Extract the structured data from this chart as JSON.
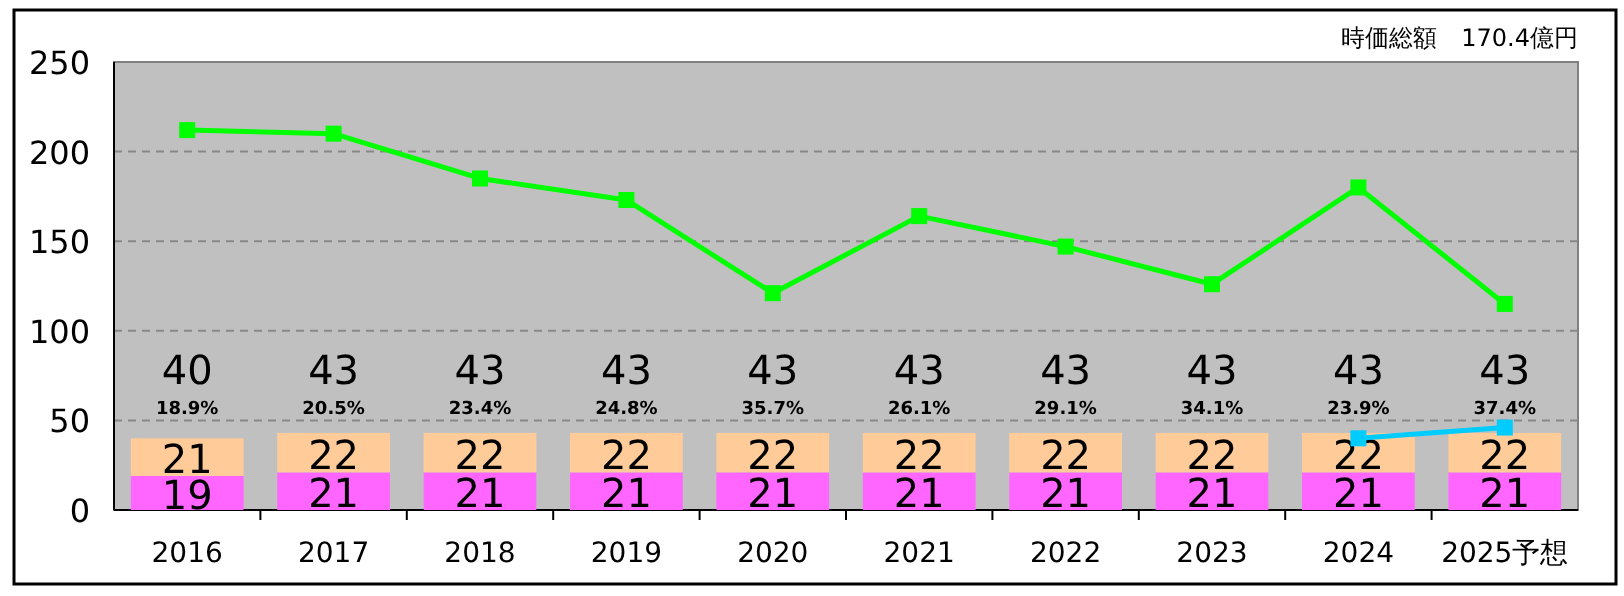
{
  "chart_data": {
    "type": "bar",
    "subtitle": "時価総額　170.4億円",
    "categories": [
      "2016",
      "2017",
      "2018",
      "2019",
      "2020",
      "2021",
      "2022",
      "2023",
      "2024",
      "2025予想"
    ],
    "series": [
      {
        "type": "bar",
        "color": "#ff66ff",
        "values": [
          19,
          21,
          21,
          21,
          21,
          21,
          21,
          21,
          21,
          21
        ],
        "value_labels": [
          "19",
          "21",
          "21",
          "21",
          "21",
          "21",
          "21",
          "21",
          "21",
          "21"
        ]
      },
      {
        "type": "bar",
        "color": "#ffcc99",
        "values": [
          21,
          22,
          22,
          22,
          22,
          22,
          22,
          22,
          22,
          22
        ],
        "value_labels": [
          "21",
          "22",
          "22",
          "22",
          "22",
          "22",
          "22",
          "22",
          "22",
          "22"
        ]
      },
      {
        "type": "line",
        "color": "#00ff00",
        "values": [
          212,
          210,
          185,
          173,
          121,
          164,
          147,
          126,
          180,
          115
        ]
      },
      {
        "type": "line",
        "color": "#00ccff",
        "values": [
          null,
          null,
          null,
          null,
          null,
          null,
          null,
          null,
          40,
          46
        ]
      }
    ],
    "stacked": true,
    "totals": [
      "40",
      "43",
      "43",
      "43",
      "43",
      "43",
      "43",
      "43",
      "43",
      "43"
    ],
    "annotations": [
      "18.9%",
      "20.5%",
      "23.4%",
      "24.8%",
      "35.7%",
      "26.1%",
      "29.1%",
      "34.1%",
      "23.9%",
      "37.4%"
    ],
    "ylim": [
      0,
      250
    ],
    "yticks": [
      0,
      50,
      100,
      150,
      200,
      250
    ],
    "grid": "y",
    "marker": "square"
  }
}
